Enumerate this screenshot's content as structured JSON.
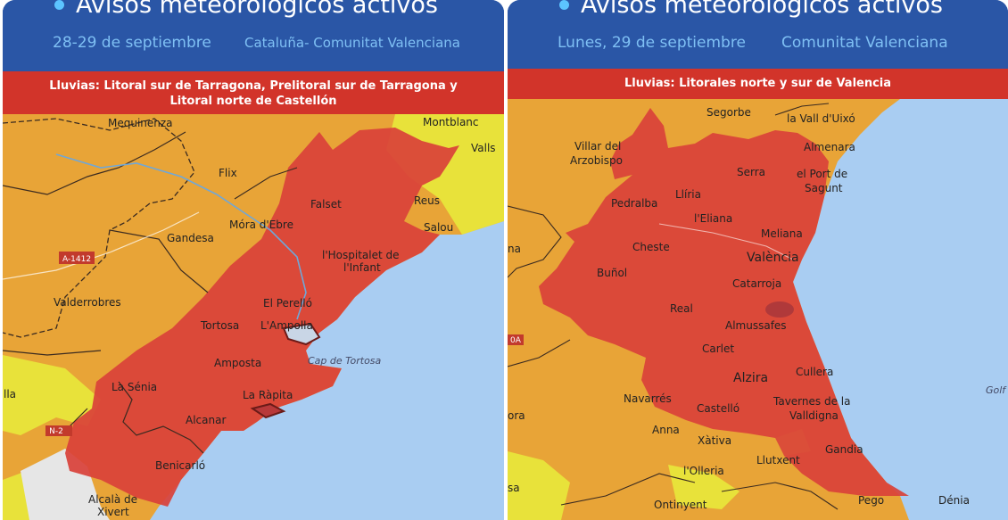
{
  "panels": [
    {
      "title": "Avisos meteorológicos activos",
      "date": "28-29 de septiembre",
      "region": "Cataluña- Comunitat Valenciana",
      "banner_line1": "Lluvias: Litoral sur de Tarragona, Prelitoral sur de Tarragona y",
      "banner_line2": "Litoral norte de Castellón",
      "map_labels": {
        "mequinenza": "Mequinenza",
        "montblanc": "Montblanc",
        "valls": "Valls",
        "flix": "Flix",
        "falset": "Falset",
        "reus": "Reus",
        "salou": "Salou",
        "gandesa": "Gandesa",
        "mora": "Móra d'Ebre",
        "hospitalet1": "l'Hospitalet de",
        "hospitalet2": "l'Infant",
        "valderrobres": "Valderrobres",
        "perello": "El Perelló",
        "tortosa": "Tortosa",
        "ampolla": "L'Ampolla",
        "amposta": "Amposta",
        "cap": "Cap de Tortosa",
        "senia": "La Sénia",
        "rapita": "La Ràpita",
        "alcanar": "Alcanar",
        "benicarlo": "Benicarló",
        "alcala1": "Alcalà de",
        "alcala2": "Xivert",
        "lla": "lla",
        "road_a1412": "A-1412",
        "road_n2": "N-2"
      }
    },
    {
      "title": "Avisos meteorológicos activos",
      "date": "Lunes, 29 de septiembre",
      "region": "Comunitat Valenciana",
      "banner_line1": "Lluvias: Litorales norte y sur de Valencia",
      "map_labels": {
        "segorbe": "Segorbe",
        "vall": "la Vall d'Uixó",
        "villar1": "Villar del",
        "villar2": "Arzobispo",
        "almenara": "Almenara",
        "serra": "Serra",
        "port1": "el Port de",
        "port2": "Sagunt",
        "lliria": "Llíria",
        "pedralba": "Pedralba",
        "eliana": "l'Eliana",
        "meliana": "Meliana",
        "cheste": "Cheste",
        "valencia": "València",
        "bunol": "Buñol",
        "catarroja": "Catarroja",
        "real": "Real",
        "almussafes": "Almussafes",
        "carlet": "Carlet",
        "cullera": "Cullera",
        "alzira": "Alzira",
        "navarres": "Navarrés",
        "castello": "Castelló",
        "tavernes1": "Tavernes de la",
        "tavernes2": "Valldigna",
        "anna": "Anna",
        "xativa": "Xàtiva",
        "llutxent": "Llutxent",
        "gandia": "Gandia",
        "olleria": "l'Olleria",
        "ontinyent": "Ontinyent",
        "pego": "Pego",
        "denia": "Dénia",
        "golf": "Golf",
        "na": "na",
        "ora": "ora",
        "sa": "sa",
        "road_0a": "0A"
      }
    }
  ]
}
